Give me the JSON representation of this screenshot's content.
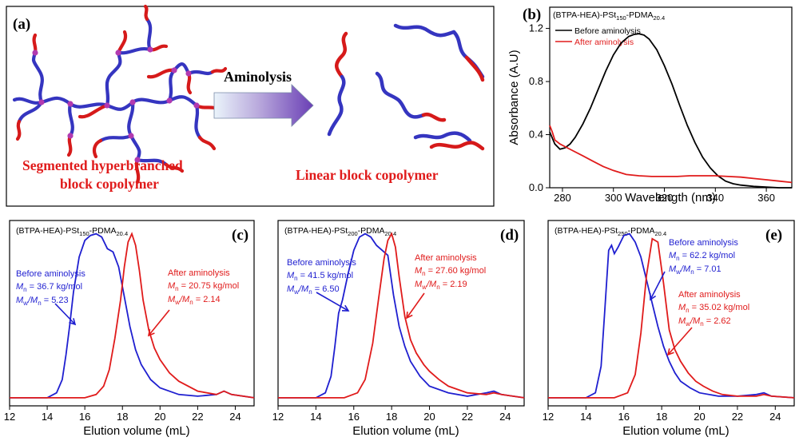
{
  "panel_a": {
    "letter": "(a)",
    "arrow_label": "Aminolysis",
    "left_caption": [
      "Segmented hyperbranched",
      "block copolymer"
    ],
    "right_caption": "Linear block copolymer"
  },
  "chart_data": [
    {
      "id": "b",
      "letter": "(b)",
      "type": "line",
      "title": "(BTPA-HEA)-PSt150-PDMA20.4",
      "title_parts": {
        "pre": "(BTPA-HEA)-PSt",
        "sub1": "150",
        "mid": "-PDMA",
        "sub2": "20.4"
      },
      "xlabel": "Wavelength (nm)",
      "ylabel": "Absorbance (A.U)",
      "xlim": [
        275,
        370
      ],
      "ylim": [
        0,
        1.36
      ],
      "xticks": [
        280,
        300,
        320,
        340,
        360
      ],
      "yticks": [
        0.0,
        0.4,
        0.8,
        1.2
      ],
      "ytick_labels": [
        "0.0",
        "0.4",
        "0.8",
        "1.2"
      ],
      "series": [
        {
          "name": "Before aminolysis",
          "color": "#000000",
          "x": [
            275,
            277,
            279,
            281,
            283,
            285,
            288,
            291,
            294,
            297,
            300,
            303,
            306,
            308,
            310,
            312,
            314,
            317,
            320,
            323,
            326,
            329,
            332,
            335,
            338,
            341,
            344,
            347,
            350,
            355,
            360,
            365,
            370
          ],
          "y": [
            0.42,
            0.33,
            0.29,
            0.3,
            0.33,
            0.38,
            0.48,
            0.6,
            0.74,
            0.88,
            1.0,
            1.09,
            1.14,
            1.155,
            1.16,
            1.15,
            1.12,
            1.04,
            0.92,
            0.78,
            0.62,
            0.47,
            0.34,
            0.23,
            0.15,
            0.09,
            0.05,
            0.03,
            0.02,
            0.01,
            0.005,
            0.0,
            0.0
          ]
        },
        {
          "name": "After aminolysis",
          "color": "#e01b1b",
          "x": [
            275,
            276,
            277,
            279,
            281,
            284,
            288,
            292,
            296,
            300,
            305,
            310,
            315,
            320,
            325,
            330,
            335,
            340,
            345,
            350,
            355,
            360,
            365,
            370
          ],
          "y": [
            0.47,
            0.42,
            0.36,
            0.33,
            0.31,
            0.28,
            0.24,
            0.2,
            0.16,
            0.13,
            0.1,
            0.09,
            0.085,
            0.085,
            0.085,
            0.09,
            0.09,
            0.09,
            0.085,
            0.08,
            0.07,
            0.06,
            0.05,
            0.04
          ]
        }
      ]
    },
    {
      "id": "c",
      "letter": "(c)",
      "type": "line",
      "title": "(BTPA-HEA)-PSt150-PDMA20.4",
      "title_parts": {
        "pre": "(BTPA-HEA)-PSt",
        "sub1": "150",
        "mid": "-PDMA",
        "sub2": "20.4"
      },
      "xlabel": "Elution volume (mL)",
      "xlim": [
        12,
        25
      ],
      "ylim": [
        0,
        1.08
      ],
      "xticks": [
        12,
        14,
        16,
        18,
        20,
        22,
        24
      ],
      "series": [
        {
          "name": "Before aminolysis",
          "color": "#1f1fd0",
          "x": [
            12,
            14,
            14.5,
            14.8,
            15.0,
            15.2,
            15.4,
            15.7,
            16.0,
            16.3,
            16.6,
            16.9,
            17.2,
            17.5,
            17.8,
            18.1,
            18.4,
            18.7,
            19.0,
            19.5,
            20.0,
            21.0,
            22.0,
            23.0,
            23.4,
            23.8,
            25.0
          ],
          "y": [
            0.01,
            0.01,
            0.04,
            0.12,
            0.27,
            0.45,
            0.65,
            0.86,
            0.96,
            0.99,
            1.0,
            0.98,
            0.91,
            0.89,
            0.8,
            0.62,
            0.44,
            0.3,
            0.21,
            0.12,
            0.07,
            0.03,
            0.02,
            0.03,
            0.05,
            0.03,
            0.01
          ]
        },
        {
          "name": "After aminolysis",
          "color": "#e01b1b",
          "x": [
            12,
            16,
            16.6,
            17.0,
            17.3,
            17.6,
            17.9,
            18.1,
            18.3,
            18.5,
            18.7,
            18.9,
            19.1,
            19.4,
            19.7,
            20.0,
            20.5,
            21.0,
            22.0,
            23.0,
            23.4,
            23.8,
            25.0
          ],
          "y": [
            0.01,
            0.01,
            0.03,
            0.08,
            0.18,
            0.37,
            0.6,
            0.8,
            0.95,
            1.0,
            0.93,
            0.78,
            0.6,
            0.42,
            0.31,
            0.24,
            0.16,
            0.11,
            0.05,
            0.03,
            0.05,
            0.03,
            0.01
          ]
        }
      ],
      "annotations": {
        "before": {
          "label": "Before aminolysis",
          "mn": "36.7 kg/mol",
          "mwmn": "5.23"
        },
        "after": {
          "label": "After aminolysis",
          "mn": "20.75 kg/mol",
          "mwmn": "2.14"
        }
      }
    },
    {
      "id": "d",
      "letter": "(d)",
      "type": "line",
      "title": "(BTPA-HEA)-PSt200-PDMA20.4",
      "title_parts": {
        "pre": "(BTPA-HEA)-PSt",
        "sub1": "200",
        "mid": "-PDMA",
        "sub2": "20.4"
      },
      "xlabel": "Elution volume (mL)",
      "xlim": [
        12,
        25
      ],
      "ylim": [
        0,
        1.08
      ],
      "xticks": [
        12,
        14,
        16,
        18,
        20,
        22,
        24
      ],
      "series": [
        {
          "name": "Before aminolysis",
          "color": "#1f1fd0",
          "x": [
            12,
            14,
            14.5,
            14.8,
            15.0,
            15.2,
            15.4,
            15.7,
            16.0,
            16.3,
            16.6,
            16.9,
            17.2,
            17.5,
            17.8,
            18.1,
            18.4,
            18.7,
            19.0,
            19.5,
            20.0,
            21.0,
            22.0,
            23.0,
            23.4,
            23.8,
            25.0
          ],
          "y": [
            0.01,
            0.01,
            0.04,
            0.14,
            0.32,
            0.52,
            0.6,
            0.76,
            0.9,
            0.98,
            1.0,
            0.98,
            0.93,
            0.9,
            0.87,
            0.63,
            0.44,
            0.32,
            0.23,
            0.14,
            0.08,
            0.04,
            0.02,
            0.04,
            0.05,
            0.03,
            0.01
          ]
        },
        {
          "name": "After aminolysis",
          "color": "#e01b1b",
          "x": [
            12,
            15.5,
            16.2,
            16.6,
            17.0,
            17.3,
            17.6,
            17.8,
            18.0,
            18.2,
            18.4,
            18.7,
            19.0,
            19.3,
            19.7,
            20.0,
            20.5,
            21.0,
            22.0,
            23.0,
            23.4,
            23.8,
            25.0
          ],
          "y": [
            0.01,
            0.01,
            0.04,
            0.12,
            0.34,
            0.6,
            0.85,
            0.96,
            1.0,
            0.92,
            0.74,
            0.5,
            0.36,
            0.28,
            0.21,
            0.17,
            0.12,
            0.08,
            0.04,
            0.03,
            0.04,
            0.03,
            0.01
          ]
        }
      ],
      "annotations": {
        "before": {
          "label": "Before aminolysis",
          "mn": "41.5 kg/mol",
          "mwmn": "6.50"
        },
        "after": {
          "label": "After aminolysis",
          "mn": "27.60 kg/mol",
          "mwmn": "2.19"
        }
      }
    },
    {
      "id": "e",
      "letter": "(e)",
      "type": "line",
      "title": "(BTPA-HEA)-PSt250-PDMA20.4",
      "title_parts": {
        "pre": "(BTPA-HEA)-PSt",
        "sub1": "250",
        "mid": "-PDMA",
        "sub2": "20.4"
      },
      "xlabel": "Elution volume (mL)",
      "xlim": [
        12,
        25
      ],
      "ylim": [
        0,
        1.08
      ],
      "xticks": [
        12,
        14,
        16,
        18,
        20,
        22,
        24
      ],
      "series": [
        {
          "name": "Before aminolysis",
          "color": "#1f1fd0",
          "x": [
            12,
            14,
            14.5,
            14.8,
            15.0,
            15.2,
            15.35,
            15.5,
            15.7,
            16.0,
            16.3,
            16.6,
            16.9,
            17.2,
            17.5,
            17.8,
            18.1,
            18.4,
            18.7,
            19.0,
            19.5,
            20.0,
            21.0,
            22.0,
            23.0,
            23.4,
            23.8,
            25.0
          ],
          "y": [
            0.01,
            0.01,
            0.04,
            0.2,
            0.55,
            0.9,
            0.93,
            0.88,
            0.92,
            0.99,
            1.0,
            0.95,
            0.86,
            0.72,
            0.58,
            0.44,
            0.32,
            0.23,
            0.16,
            0.11,
            0.07,
            0.04,
            0.02,
            0.02,
            0.03,
            0.04,
            0.02,
            0.01
          ]
        },
        {
          "name": "After aminolysis",
          "color": "#e01b1b",
          "x": [
            12,
            15.5,
            16.2,
            16.6,
            16.9,
            17.2,
            17.5,
            17.8,
            18.1,
            18.4,
            18.7,
            19.0,
            19.4,
            19.8,
            20.2,
            20.7,
            21.2,
            22.0,
            23.0,
            23.4,
            23.8,
            25.0
          ],
          "y": [
            0.01,
            0.01,
            0.04,
            0.15,
            0.4,
            0.75,
            0.97,
            0.95,
            0.7,
            0.42,
            0.3,
            0.23,
            0.16,
            0.11,
            0.08,
            0.05,
            0.03,
            0.02,
            0.02,
            0.03,
            0.02,
            0.01
          ]
        }
      ],
      "annotations": {
        "before": {
          "label": "Before aminolysis",
          "mn": "62.2 kg/mol",
          "mwmn": "7.01"
        },
        "after": {
          "label": "After aminolysis",
          "mn": "35.02 kg/mol",
          "mwmn": "2.62"
        }
      }
    }
  ]
}
